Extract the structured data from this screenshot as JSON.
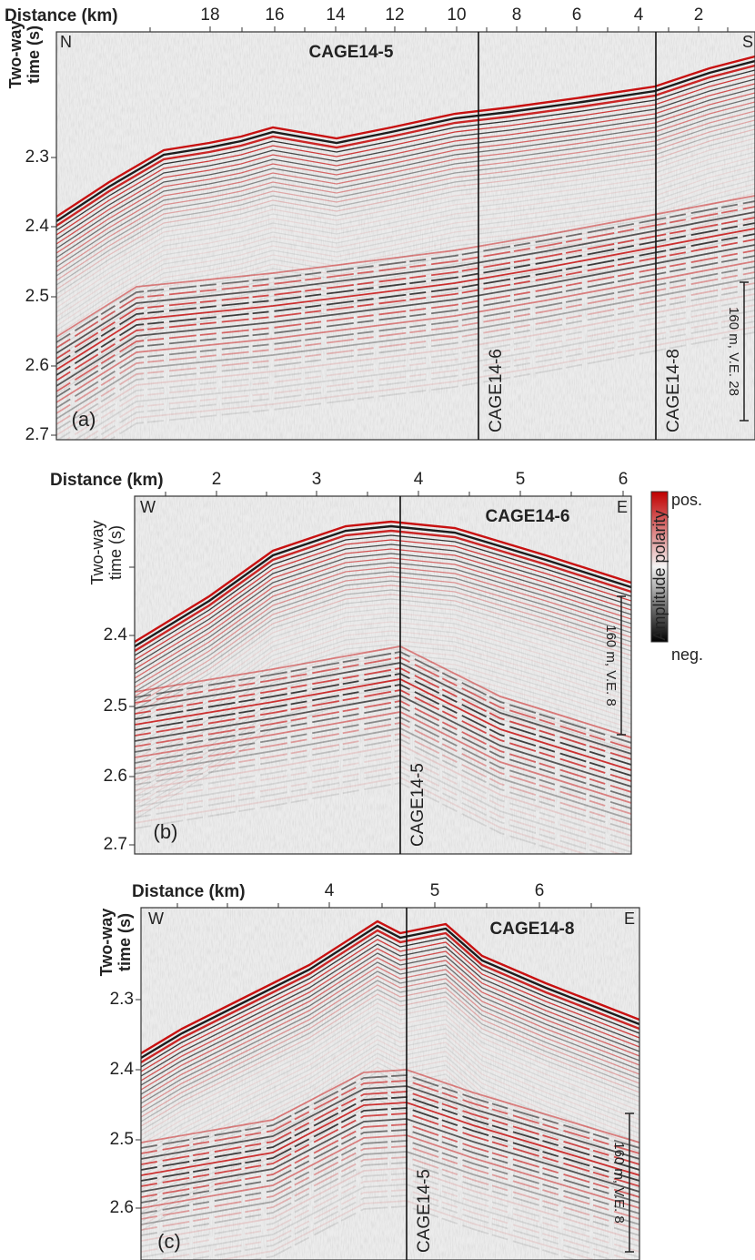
{
  "panels": [
    {
      "label": "(a)",
      "axis_title": "Distance (km)",
      "y_title": [
        "Two-way",
        "time (s)"
      ],
      "corners": [
        "N",
        "S"
      ],
      "title": "CAGE14-5",
      "xticks": [
        18,
        16,
        14,
        12,
        10,
        8,
        6,
        4,
        2
      ],
      "yticks": [
        2.3,
        2.4,
        2.5,
        2.6,
        2.7
      ],
      "crossings": [
        "CAGE14-6",
        "CAGE14-8"
      ],
      "scale_bar": "160 m, V.E. 28"
    },
    {
      "label": "(b)",
      "axis_title": "Distance (km)",
      "y_title": [
        "Two-way",
        "time (s)"
      ],
      "corners": [
        "W",
        "E"
      ],
      "title": "CAGE14-6",
      "xticks": [
        2,
        3,
        4,
        5,
        6
      ],
      "yticks": [
        2.4,
        2.5,
        2.6,
        2.7
      ],
      "crossings": [
        "CAGE14-5"
      ],
      "scale_bar": "160 m, V.E. 8"
    },
    {
      "label": "(c)",
      "axis_title": "Distance (km)",
      "y_title": [
        "Two-way",
        "time (s)"
      ],
      "corners": [
        "W",
        "E"
      ],
      "title": "CAGE14-8",
      "xticks": [
        4,
        5,
        6
      ],
      "yticks": [
        2.3,
        2.4,
        2.5,
        2.6
      ],
      "crossings": [
        "CAGE14-5"
      ],
      "scale_bar": "160 m, V.E. 8"
    }
  ],
  "colorbar": {
    "title": "Amplitude polarity",
    "top": "pos.",
    "bottom": "neg."
  }
}
